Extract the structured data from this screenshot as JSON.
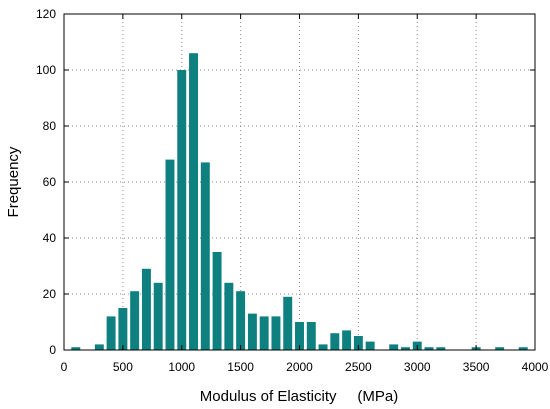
{
  "chart_data": {
    "type": "bar",
    "xlabel": "Modulus of Elasticity     (MPa)",
    "ylabel": "Frequency",
    "xlim": [
      0,
      4000
    ],
    "ylim": [
      0,
      120
    ],
    "x_ticks": [
      0,
      500,
      1000,
      1500,
      2000,
      2500,
      3000,
      3500,
      4000
    ],
    "y_ticks": [
      0,
      20,
      40,
      60,
      80,
      100,
      120
    ],
    "grid": true,
    "bar_color": "#0f8080",
    "bin_width": 100,
    "x": [
      100,
      300,
      400,
      500,
      600,
      700,
      800,
      900,
      1000,
      1100,
      1200,
      1300,
      1400,
      1500,
      1600,
      1700,
      1800,
      1900,
      2000,
      2100,
      2200,
      2300,
      2400,
      2500,
      2600,
      2800,
      2900,
      3000,
      3100,
      3200,
      3500,
      3700,
      3900
    ],
    "values": [
      1,
      2,
      12,
      15,
      21,
      29,
      24,
      68,
      100,
      106,
      67,
      35,
      24,
      21,
      13,
      12,
      12,
      19,
      10,
      10,
      2,
      6,
      7,
      5,
      3,
      2,
      1,
      3,
      1,
      1,
      1,
      1,
      1
    ]
  }
}
